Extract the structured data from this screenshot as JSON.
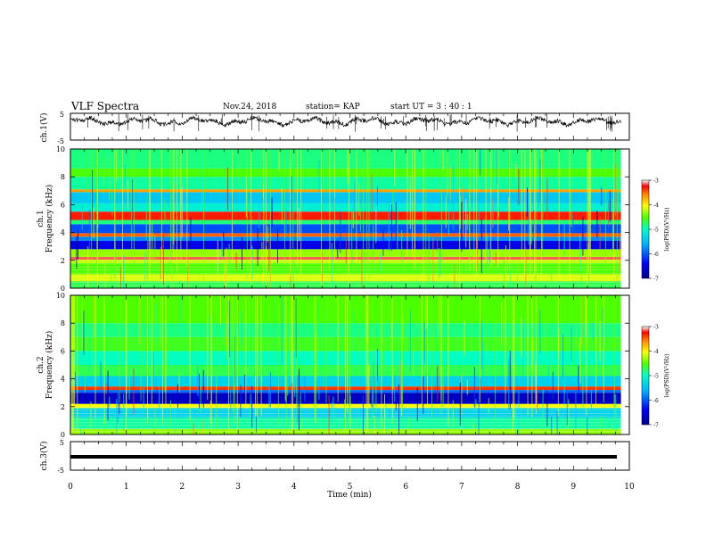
{
  "header": {
    "title": "VLF Spectra",
    "date": "Nov.24, 2018",
    "station": "station= KAP",
    "start_time": "start  UT =   3 : 40 : 1"
  },
  "chart_data": {
    "type": "heatmap",
    "x_axis": {
      "label": "Time  (min)",
      "range": [
        0,
        10
      ],
      "ticks": [
        "0",
        "1",
        "2",
        "3",
        "4",
        "5",
        "6",
        "7",
        "8",
        "9",
        "10"
      ]
    },
    "data_end_min": 9.85,
    "panels": [
      {
        "id": "ch1-waveform",
        "type": "line",
        "ylabel": "ch.1(V)",
        "ylim": [
          -5,
          5
        ],
        "ytick_labels": [
          "5",
          "-5"
        ],
        "approx_level_v": 2.0
      },
      {
        "id": "ch1-spectrogram",
        "type": "heatmap",
        "ylabel_channel": "ch.1",
        "ylabel": "Frequency  (kHz)",
        "ylim": [
          0,
          10
        ],
        "ytick_labels": [
          "0",
          "2",
          "4",
          "6",
          "8",
          "10"
        ],
        "colorbar": {
          "label": "log(PSD)(V²/Hz)",
          "range": [
            -7,
            -3
          ],
          "tick_labels": [
            "-3",
            "-4",
            "-5",
            "-6",
            "-7"
          ]
        },
        "bands_khz": [
          {
            "f0": 0.0,
            "f1": 0.5,
            "level": 0.45
          },
          {
            "f0": 0.5,
            "f1": 1.0,
            "level": 0.6
          },
          {
            "f0": 1.0,
            "f1": 1.8,
            "level": 0.5
          },
          {
            "f0": 1.8,
            "f1": 2.05,
            "level": 0.58
          },
          {
            "f0": 2.05,
            "f1": 2.25,
            "level": 0.92
          },
          {
            "f0": 2.25,
            "f1": 2.8,
            "level": 0.55
          },
          {
            "f0": 2.8,
            "f1": 3.4,
            "level": 0.1
          },
          {
            "f0": 3.4,
            "f1": 3.7,
            "level": 0.22
          },
          {
            "f0": 3.7,
            "f1": 3.95,
            "level": 0.78
          },
          {
            "f0": 3.95,
            "f1": 4.6,
            "level": 0.18
          },
          {
            "f0": 4.6,
            "f1": 4.9,
            "level": 0.42
          },
          {
            "f0": 4.9,
            "f1": 5.5,
            "level": 0.85
          },
          {
            "f0": 5.5,
            "f1": 6.1,
            "level": 0.35
          },
          {
            "f0": 6.1,
            "f1": 6.9,
            "level": 0.28
          },
          {
            "f0": 6.9,
            "f1": 7.1,
            "level": 0.72
          },
          {
            "f0": 7.1,
            "f1": 8.0,
            "level": 0.4
          },
          {
            "f0": 8.0,
            "f1": 8.6,
            "level": 0.5
          },
          {
            "f0": 8.6,
            "f1": 10.0,
            "level": 0.42
          }
        ]
      },
      {
        "id": "ch2-spectrogram",
        "type": "heatmap",
        "ylabel_channel": "ch.2",
        "ylabel": "Frequency  (kHz)",
        "ylim": [
          0,
          10
        ],
        "ytick_labels": [
          "0",
          "2",
          "4",
          "6",
          "8",
          "10"
        ],
        "colorbar": {
          "label": "log(PSD)(V²/Hz)",
          "range": [
            -7,
            -3
          ],
          "tick_labels": [
            "-3",
            "-4",
            "-5",
            "-6",
            "-7"
          ]
        },
        "bands_khz": [
          {
            "f0": 0.0,
            "f1": 0.4,
            "level": 0.55
          },
          {
            "f0": 0.4,
            "f1": 1.2,
            "level": 0.4
          },
          {
            "f0": 1.2,
            "f1": 1.9,
            "level": 0.3
          },
          {
            "f0": 1.9,
            "f1": 2.2,
            "level": 0.62
          },
          {
            "f0": 2.2,
            "f1": 3.0,
            "level": 0.06
          },
          {
            "f0": 3.0,
            "f1": 3.2,
            "level": 0.2
          },
          {
            "f0": 3.2,
            "f1": 3.45,
            "level": 0.82
          },
          {
            "f0": 3.45,
            "f1": 4.2,
            "level": 0.3
          },
          {
            "f0": 4.2,
            "f1": 5.0,
            "level": 0.45
          },
          {
            "f0": 5.0,
            "f1": 6.0,
            "level": 0.38
          },
          {
            "f0": 6.0,
            "f1": 7.0,
            "level": 0.48
          },
          {
            "f0": 7.0,
            "f1": 8.0,
            "level": 0.42
          },
          {
            "f0": 8.0,
            "f1": 10.0,
            "level": 0.5
          }
        ]
      },
      {
        "id": "ch3-waveform",
        "type": "line",
        "ylabel": "ch.3(V)",
        "ylim": [
          -5,
          5
        ],
        "ytick_labels": [
          "5",
          "-5"
        ],
        "approx_level_v": 0.0
      }
    ]
  },
  "colors": {
    "axis": "#000000",
    "background": "#ffffff",
    "colormap": [
      "#00008f",
      "#0000ff",
      "#00b4ff",
      "#00ffc8",
      "#4cff00",
      "#ffff00",
      "#ff8000",
      "#ff0000",
      "#ffffff"
    ]
  }
}
